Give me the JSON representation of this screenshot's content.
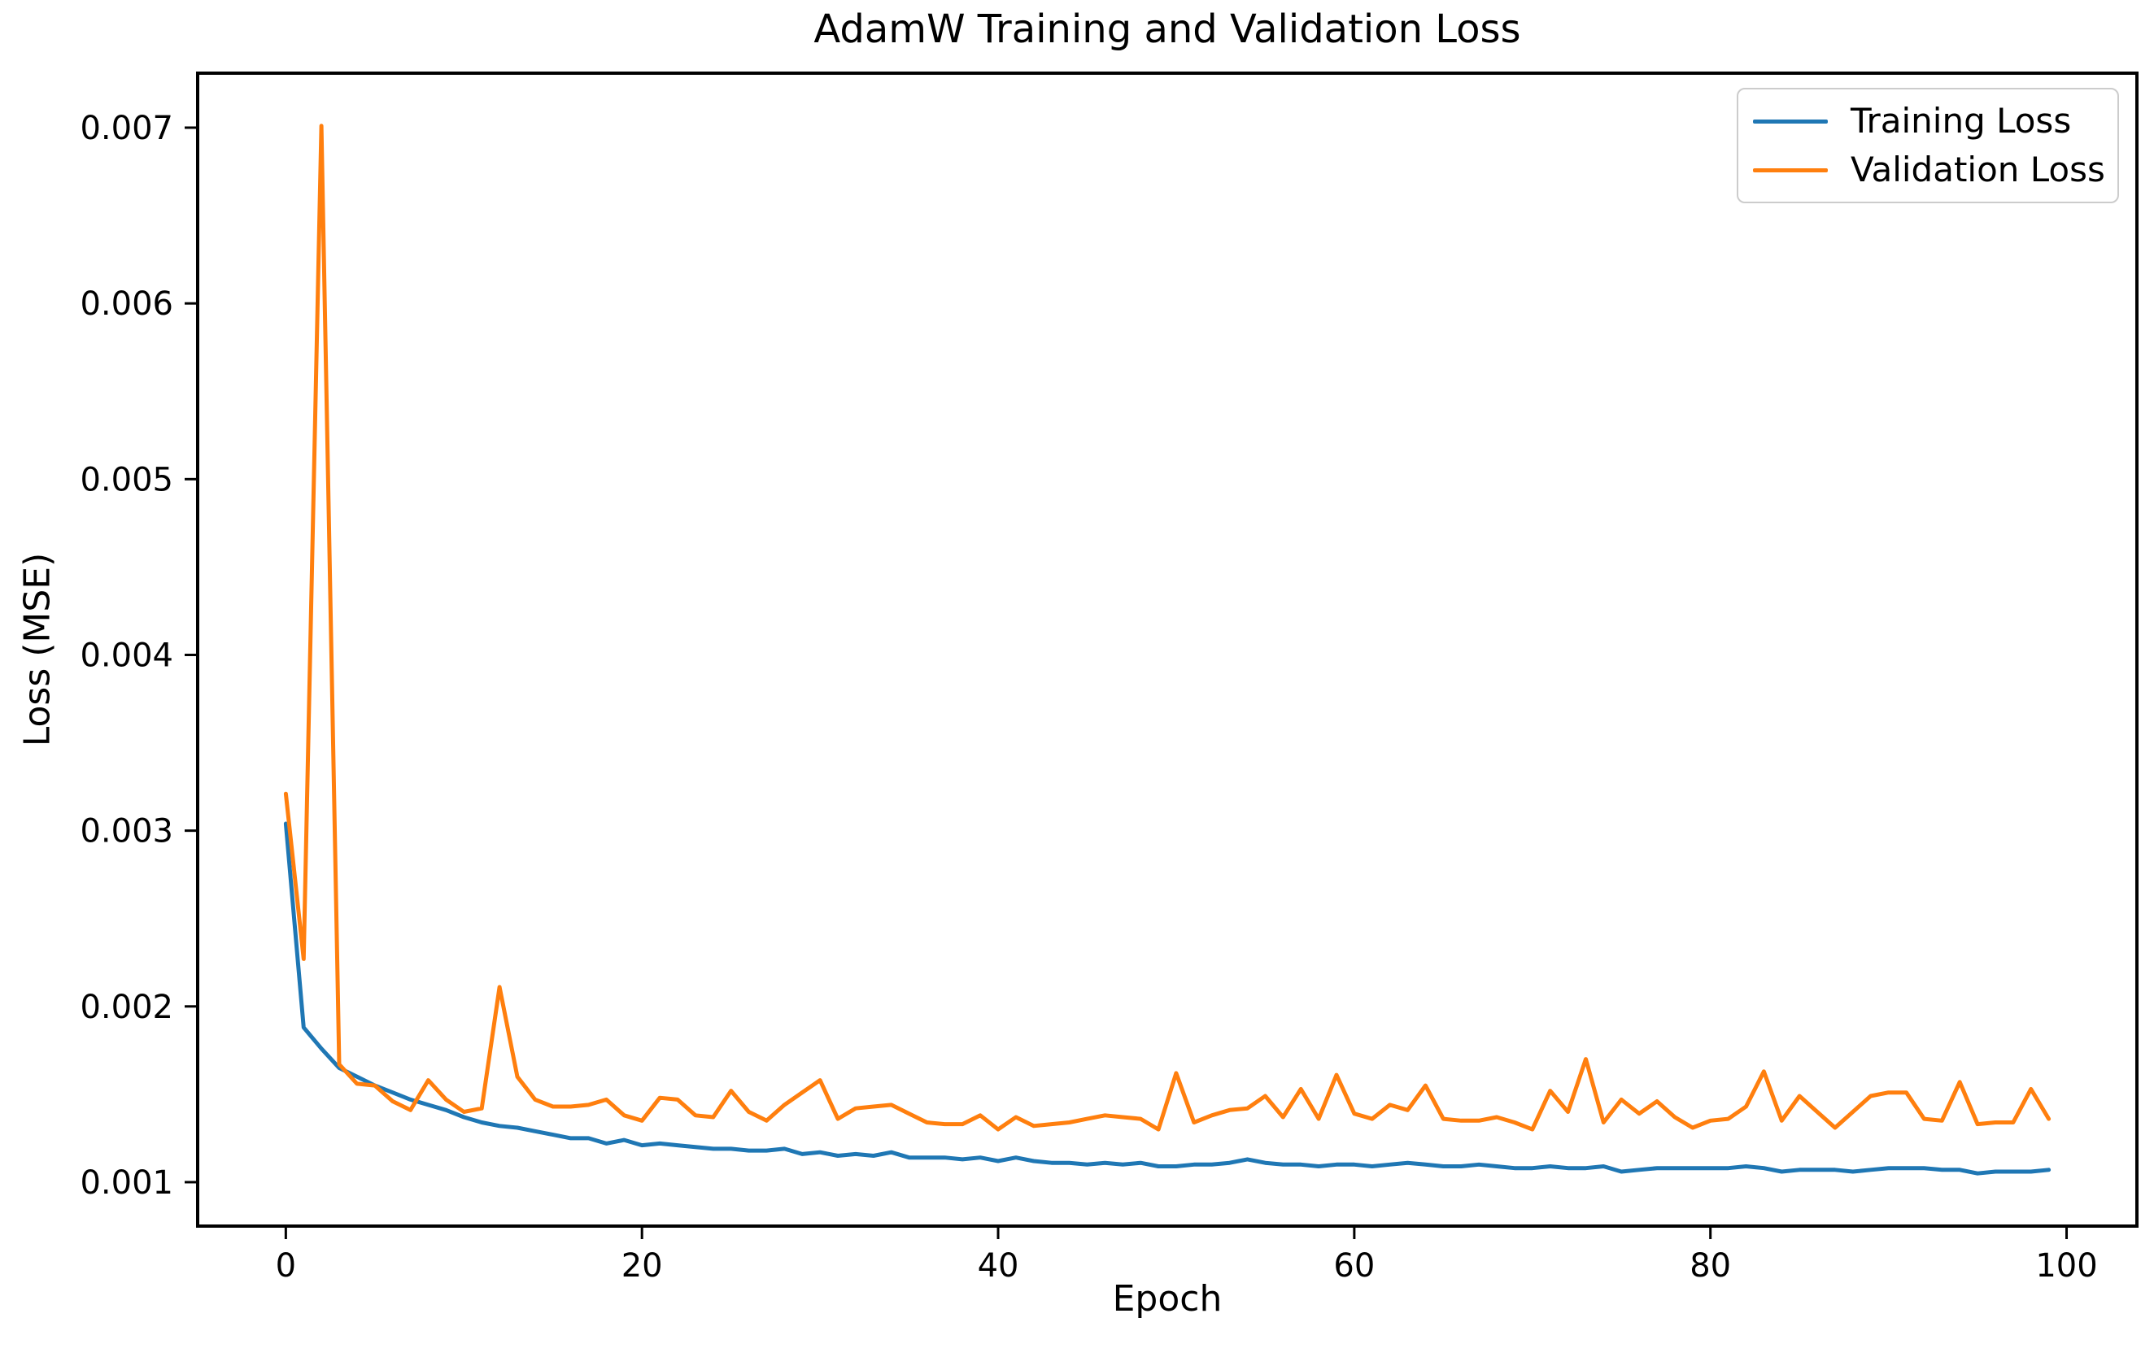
{
  "figure": {
    "title": "AdamW Training and Validation Loss",
    "background": "#ffffff",
    "spine_color": "#000000"
  },
  "legend": {
    "position": "upper right",
    "entries": [
      {
        "label": "Training Loss",
        "color": "#1f77b4"
      },
      {
        "label": "Validation Loss",
        "color": "#ff7f0e"
      }
    ]
  },
  "chart_data": {
    "type": "line",
    "title": "AdamW Training and Validation Loss",
    "xlabel": "Epoch",
    "ylabel": "Loss (MSE)",
    "x_ticks": [
      0,
      20,
      40,
      60,
      80,
      100
    ],
    "x_tick_labels": [
      "0",
      "20",
      "40",
      "60",
      "80",
      "100"
    ],
    "y_ticks": [
      0.001,
      0.002,
      0.003,
      0.004,
      0.005,
      0.006,
      0.007
    ],
    "y_tick_labels": [
      "0.001",
      "0.002",
      "0.003",
      "0.004",
      "0.005",
      "0.006",
      "0.007"
    ],
    "xlim": [
      -4.95,
      103.95
    ],
    "ylim": [
      0.00075,
      0.00731
    ],
    "grid": false,
    "legend_position": "upper right",
    "x": [
      0,
      1,
      2,
      3,
      4,
      5,
      6,
      7,
      8,
      9,
      10,
      11,
      12,
      13,
      14,
      15,
      16,
      17,
      18,
      19,
      20,
      21,
      22,
      23,
      24,
      25,
      26,
      27,
      28,
      29,
      30,
      31,
      32,
      33,
      34,
      35,
      36,
      37,
      38,
      39,
      40,
      41,
      42,
      43,
      44,
      45,
      46,
      47,
      48,
      49,
      50,
      51,
      52,
      53,
      54,
      55,
      56,
      57,
      58,
      59,
      60,
      61,
      62,
      63,
      64,
      65,
      66,
      67,
      68,
      69,
      70,
      71,
      72,
      73,
      74,
      75,
      76,
      77,
      78,
      79,
      80,
      81,
      82,
      83,
      84,
      85,
      86,
      87,
      88,
      89,
      90,
      91,
      92,
      93,
      94,
      95,
      96,
      97,
      98,
      99
    ],
    "series": [
      {
        "name": "Training Loss",
        "color": "#1f77b4",
        "values": [
          0.00304,
          0.00188,
          0.00176,
          0.00165,
          0.0016,
          0.00155,
          0.00151,
          0.00147,
          0.00144,
          0.00141,
          0.00137,
          0.00134,
          0.00132,
          0.00131,
          0.00129,
          0.00127,
          0.00125,
          0.00125,
          0.00122,
          0.00124,
          0.00121,
          0.00122,
          0.00121,
          0.0012,
          0.00119,
          0.00119,
          0.00118,
          0.00118,
          0.00119,
          0.00116,
          0.00117,
          0.00115,
          0.00116,
          0.00115,
          0.00117,
          0.00114,
          0.00114,
          0.00114,
          0.00113,
          0.00114,
          0.00112,
          0.00114,
          0.00112,
          0.00111,
          0.00111,
          0.0011,
          0.00111,
          0.0011,
          0.00111,
          0.00109,
          0.00109,
          0.0011,
          0.0011,
          0.00111,
          0.00113,
          0.00111,
          0.0011,
          0.0011,
          0.00109,
          0.0011,
          0.0011,
          0.00109,
          0.0011,
          0.00111,
          0.0011,
          0.00109,
          0.00109,
          0.0011,
          0.00109,
          0.00108,
          0.00108,
          0.00109,
          0.00108,
          0.00108,
          0.00109,
          0.00106,
          0.00107,
          0.00108,
          0.00108,
          0.00108,
          0.00108,
          0.00108,
          0.00109,
          0.00108,
          0.00106,
          0.00107,
          0.00107,
          0.00107,
          0.00106,
          0.00107,
          0.00108,
          0.00108,
          0.00108,
          0.00107,
          0.00107,
          0.00105,
          0.00106,
          0.00106,
          0.00106,
          0.00107
        ]
      },
      {
        "name": "Validation Loss",
        "color": "#ff7f0e",
        "values": [
          0.00321,
          0.00227,
          0.00701,
          0.00167,
          0.00156,
          0.00155,
          0.00146,
          0.00141,
          0.00158,
          0.00147,
          0.0014,
          0.00142,
          0.00211,
          0.0016,
          0.00147,
          0.00143,
          0.00143,
          0.00144,
          0.00147,
          0.00138,
          0.00135,
          0.00148,
          0.00147,
          0.00138,
          0.00137,
          0.00152,
          0.0014,
          0.00135,
          0.00144,
          0.00151,
          0.00158,
          0.00136,
          0.00142,
          0.00143,
          0.00144,
          0.00139,
          0.00134,
          0.00133,
          0.00133,
          0.00138,
          0.0013,
          0.00137,
          0.00132,
          0.00133,
          0.00134,
          0.00136,
          0.00138,
          0.00137,
          0.00136,
          0.0013,
          0.00162,
          0.00134,
          0.00138,
          0.00141,
          0.00142,
          0.00149,
          0.00137,
          0.00153,
          0.00136,
          0.00161,
          0.00139,
          0.00136,
          0.00144,
          0.00141,
          0.00155,
          0.00136,
          0.00135,
          0.00135,
          0.00137,
          0.00134,
          0.0013,
          0.00152,
          0.0014,
          0.0017,
          0.00134,
          0.00147,
          0.00139,
          0.00146,
          0.00137,
          0.00131,
          0.00135,
          0.00136,
          0.00143,
          0.00163,
          0.00135,
          0.00149,
          0.0014,
          0.00131,
          0.0014,
          0.00149,
          0.00151,
          0.00151,
          0.00136,
          0.00135,
          0.00157,
          0.00133,
          0.00134,
          0.00134,
          0.00153,
          0.00136
        ]
      }
    ]
  }
}
